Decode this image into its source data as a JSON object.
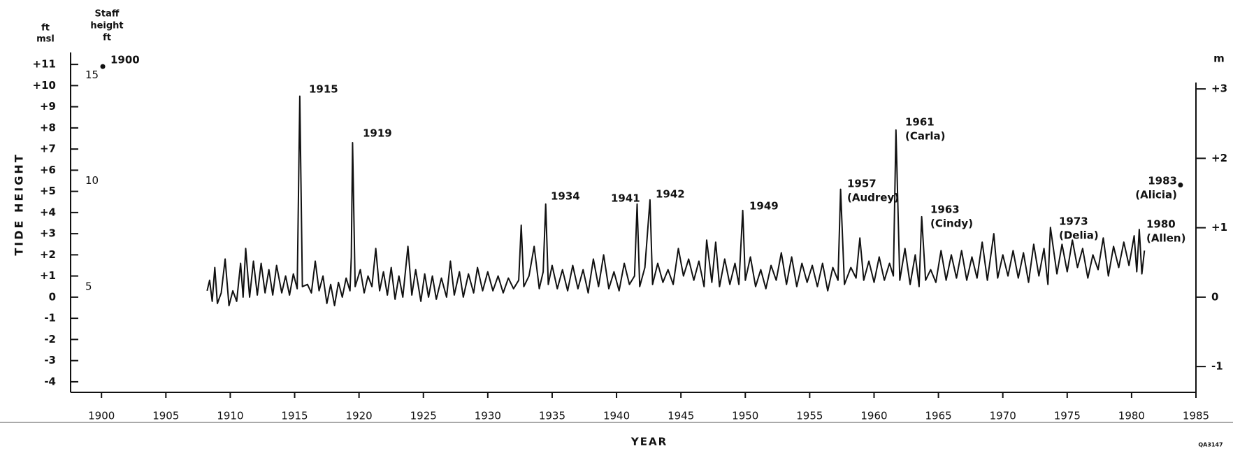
{
  "chart_data": {
    "type": "line",
    "y_label": "TIDE HEIGHT",
    "x_label": "YEAR",
    "y_unit": [
      "ft",
      "msl"
    ],
    "y3_unit": [
      "Staff",
      "height",
      "ft"
    ],
    "y2_unit": "m",
    "figure_id": "QA3147",
    "xlim": [
      1897.6,
      1985
    ],
    "xticks": [
      1900,
      1905,
      1910,
      1915,
      1920,
      1925,
      1930,
      1935,
      1940,
      1945,
      1950,
      1955,
      1960,
      1965,
      1970,
      1975,
      1980,
      1985
    ],
    "ylim": [
      -4.5,
      11.5
    ],
    "yticks": [
      {
        "value": 11,
        "label": "+11"
      },
      {
        "value": 10,
        "label": "+10"
      },
      {
        "value": 9,
        "label": "+9"
      },
      {
        "value": 8,
        "label": "+8"
      },
      {
        "value": 7,
        "label": "+7"
      },
      {
        "value": 6,
        "label": "+6"
      },
      {
        "value": 5,
        "label": "+5"
      },
      {
        "value": 4,
        "label": "+4"
      },
      {
        "value": 3,
        "label": "+3"
      },
      {
        "value": 2,
        "label": "+2"
      },
      {
        "value": 1,
        "label": "+1"
      },
      0,
      -1,
      -2,
      -3,
      -4
    ],
    "y2lim": [
      -1.3716,
      3.5052
    ],
    "y2ticks": [
      {
        "value": 3,
        "label": "+3"
      },
      {
        "value": 2,
        "label": "+2"
      },
      {
        "value": 1,
        "label": "+1"
      },
      0,
      -1
    ],
    "y3lim": [
      0,
      16
    ],
    "y3ticks": [
      5,
      10,
      15
    ],
    "series": [
      {
        "color": "#111111",
        "x": [
          1908.2,
          1908.4,
          1908.6,
          1908.8,
          1909.0,
          1909.3,
          1909.6,
          1909.9,
          1910.2,
          1910.5,
          1910.8,
          1911.0,
          1911.2,
          1911.5,
          1911.8,
          1912.1,
          1912.4,
          1912.7,
          1913.0,
          1913.3,
          1913.6,
          1914.0,
          1914.3,
          1914.6,
          1914.9,
          1915.2,
          1915.4,
          1915.6,
          1916.0,
          1916.3,
          1916.6,
          1916.9,
          1917.2,
          1917.5,
          1917.8,
          1918.1,
          1918.4,
          1918.7,
          1919.0,
          1919.3,
          1919.4,
          1919.5,
          1919.7,
          1920.1,
          1920.4,
          1920.7,
          1921.0,
          1921.3,
          1921.6,
          1921.9,
          1922.2,
          1922.5,
          1922.8,
          1923.1,
          1923.4,
          1923.8,
          1924.1,
          1924.4,
          1924.8,
          1925.1,
          1925.4,
          1925.7,
          1926.0,
          1926.4,
          1926.8,
          1927.1,
          1927.4,
          1927.8,
          1928.1,
          1928.5,
          1928.9,
          1929.2,
          1929.6,
          1930.0,
          1930.4,
          1930.8,
          1931.2,
          1931.6,
          1932.0,
          1932.4,
          1932.6,
          1932.8,
          1933.2,
          1933.6,
          1934.0,
          1934.3,
          1934.5,
          1934.7,
          1935.0,
          1935.4,
          1935.8,
          1936.2,
          1936.6,
          1937.0,
          1937.4,
          1937.8,
          1938.2,
          1938.6,
          1939.0,
          1939.4,
          1939.8,
          1940.2,
          1940.6,
          1941.0,
          1941.4,
          1941.6,
          1941.8,
          1942.2,
          1942.6,
          1942.8,
          1943.2,
          1943.6,
          1944.0,
          1944.4,
          1944.8,
          1945.2,
          1945.6,
          1946.0,
          1946.4,
          1946.8,
          1947.0,
          1947.4,
          1947.7,
          1948.0,
          1948.4,
          1948.8,
          1949.2,
          1949.5,
          1949.8,
          1950.0,
          1950.4,
          1950.8,
          1951.2,
          1951.6,
          1952.0,
          1952.4,
          1952.8,
          1953.2,
          1953.6,
          1954.0,
          1954.4,
          1954.8,
          1955.2,
          1955.6,
          1956.0,
          1956.4,
          1956.8,
          1957.2,
          1957.4,
          1957.7,
          1958.2,
          1958.6,
          1958.9,
          1959.2,
          1959.6,
          1960.0,
          1960.4,
          1960.8,
          1961.2,
          1961.5,
          1961.7,
          1962.0,
          1962.4,
          1962.8,
          1963.2,
          1963.5,
          1963.7,
          1964.0,
          1964.4,
          1964.8,
          1965.2,
          1965.6,
          1966.0,
          1966.4,
          1966.8,
          1967.2,
          1967.6,
          1968.0,
          1968.4,
          1968.8,
          1969.3,
          1969.6,
          1970.0,
          1970.4,
          1970.8,
          1971.2,
          1971.6,
          1972.0,
          1972.4,
          1972.8,
          1973.2,
          1973.5,
          1973.7,
          1974.2,
          1974.6,
          1975.0,
          1975.4,
          1975.8,
          1976.2,
          1976.6,
          1977.0,
          1977.4,
          1977.8,
          1978.2,
          1978.6,
          1979.0,
          1979.4,
          1979.8,
          1980.2,
          1980.4,
          1980.6,
          1980.8,
          1981.0
        ],
        "values": [
          0.3,
          0.8,
          -0.2,
          1.4,
          -0.3,
          0.2,
          1.8,
          -0.4,
          0.3,
          -0.2,
          1.6,
          0.0,
          2.3,
          0.0,
          1.7,
          0.1,
          1.6,
          0.2,
          1.3,
          0.1,
          1.5,
          0.2,
          1.0,
          0.1,
          1.1,
          0.4,
          9.5,
          0.5,
          0.6,
          0.2,
          1.7,
          0.3,
          1.0,
          -0.3,
          0.6,
          -0.4,
          0.7,
          0.0,
          0.9,
          0.3,
          1.9,
          7.3,
          0.5,
          1.3,
          0.2,
          1.0,
          0.5,
          2.3,
          0.3,
          1.2,
          0.1,
          1.4,
          -0.1,
          1.0,
          0.0,
          2.4,
          0.1,
          1.3,
          -0.2,
          1.1,
          0.0,
          1.0,
          -0.1,
          0.9,
          0.0,
          1.7,
          0.1,
          1.2,
          0.0,
          1.1,
          0.2,
          1.4,
          0.3,
          1.2,
          0.3,
          1.0,
          0.2,
          0.9,
          0.4,
          0.8,
          3.4,
          0.5,
          1.0,
          2.4,
          0.4,
          1.2,
          4.4,
          0.6,
          1.5,
          0.4,
          1.3,
          0.3,
          1.5,
          0.4,
          1.3,
          0.2,
          1.8,
          0.5,
          2.0,
          0.4,
          1.2,
          0.3,
          1.6,
          0.6,
          1.0,
          4.4,
          0.5,
          1.4,
          4.6,
          0.6,
          1.6,
          0.7,
          1.3,
          0.6,
          2.3,
          1.0,
          1.8,
          0.8,
          1.7,
          0.5,
          2.7,
          0.7,
          2.6,
          0.5,
          1.8,
          0.6,
          1.6,
          0.6,
          4.1,
          0.8,
          1.9,
          0.5,
          1.3,
          0.4,
          1.5,
          0.8,
          2.1,
          0.6,
          1.9,
          0.5,
          1.6,
          0.7,
          1.5,
          0.5,
          1.6,
          0.3,
          1.4,
          0.8,
          5.1,
          0.6,
          1.4,
          0.9,
          2.8,
          0.8,
          1.7,
          0.7,
          1.9,
          0.8,
          1.6,
          1.0,
          7.9,
          0.8,
          2.3,
          0.6,
          2.0,
          0.5,
          3.8,
          0.8,
          1.3,
          0.7,
          2.2,
          0.8,
          2.0,
          0.9,
          2.2,
          0.8,
          1.9,
          0.9,
          2.6,
          0.8,
          3.0,
          0.9,
          2.0,
          1.0,
          2.2,
          0.9,
          2.1,
          0.7,
          2.5,
          1.0,
          2.3,
          0.6,
          3.3,
          1.1,
          2.5,
          1.2,
          2.7,
          1.4,
          2.3,
          0.9,
          2.0,
          1.3,
          2.8,
          1.0,
          2.4,
          1.4,
          2.6,
          1.5,
          2.9,
          1.2,
          3.2,
          1.1,
          2.2
        ]
      }
    ],
    "points": {
      "x": [
        1900.1,
        1983.8
      ],
      "values": [
        10.9,
        5.3
      ]
    },
    "annotations": [
      [
        "1900"
      ],
      [
        "1915"
      ],
      [
        "1919"
      ],
      [
        "1934"
      ],
      [
        "1941"
      ],
      [
        "1942"
      ],
      [
        "1949"
      ],
      [
        "1957",
        "(Audrey)"
      ],
      [
        "1961",
        "(Carla)"
      ],
      [
        "1963",
        "(Cindy)"
      ],
      [
        "1973",
        "(Delia)"
      ],
      [
        "1980",
        "(Allen)"
      ],
      [
        "1983",
        "(Alicia)"
      ]
    ]
  }
}
